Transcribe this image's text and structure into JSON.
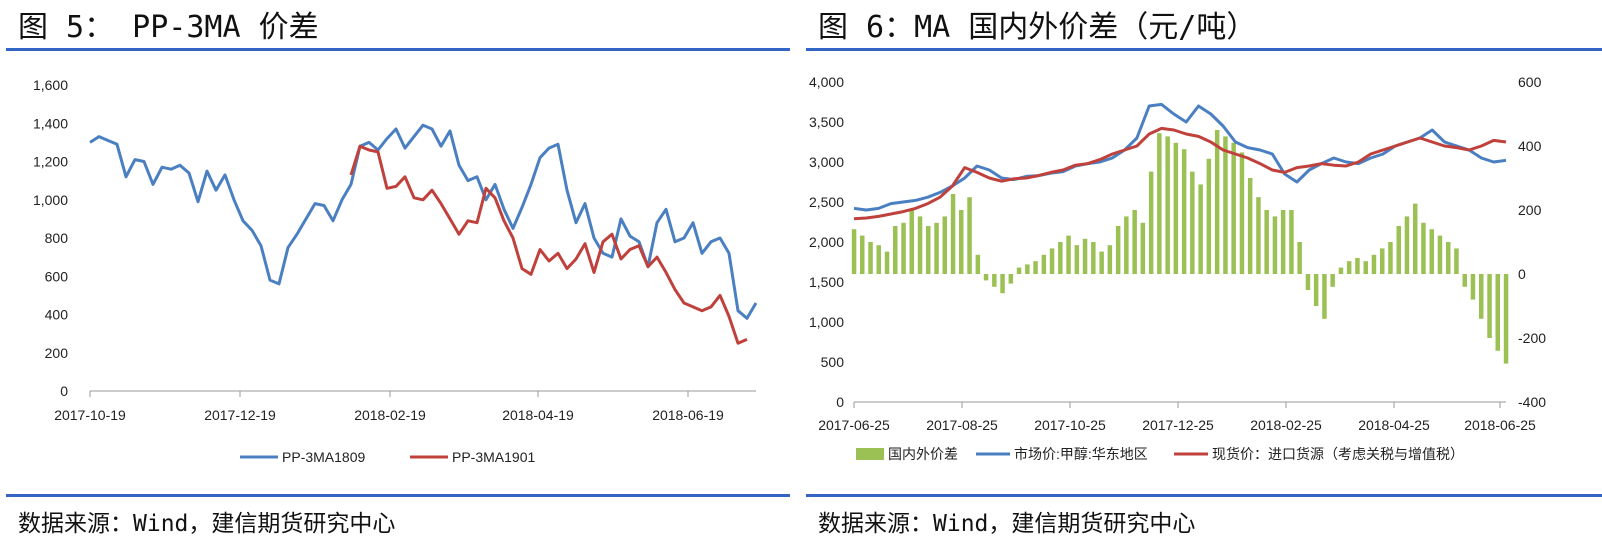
{
  "panels": {
    "left": {
      "title": "图 5： PP-3MA 价差",
      "source": "数据来源：Wind，建信期货研究中心"
    },
    "right": {
      "title": "图 6：MA 国内外价差（元/吨）",
      "source": "数据来源：Wind，建信期货研究中心"
    }
  },
  "colors": {
    "blue": "#4a7fc1",
    "red": "#c0413c",
    "green": "#9bc155",
    "rule": "#3565c4"
  },
  "chart_data": [
    {
      "type": "line",
      "title": "",
      "x_tick_labels": [
        "2017-10-19",
        "2017-12-19",
        "2018-02-19",
        "2018-04-19",
        "2018-06-19"
      ],
      "ylim": [
        0,
        1600
      ],
      "y_ticks": [
        0,
        200,
        400,
        600,
        800,
        1000,
        1200,
        1400,
        1600
      ],
      "y_tick_labels": [
        "0",
        "200",
        "400",
        "600",
        "800",
        "1,000",
        "1,200",
        "1,400",
        "1,600"
      ],
      "legend_position": "bottom",
      "series": [
        {
          "name": "PP-3MA1809",
          "color": "#4a7fc1",
          "values": [
            1300,
            1330,
            1310,
            1290,
            1120,
            1210,
            1200,
            1080,
            1170,
            1160,
            1180,
            1140,
            990,
            1150,
            1050,
            1130,
            1000,
            890,
            840,
            760,
            580,
            560,
            750,
            820,
            900,
            980,
            970,
            890,
            1000,
            1080,
            1280,
            1300,
            1260,
            1320,
            1370,
            1270,
            1330,
            1390,
            1370,
            1280,
            1360,
            1180,
            1100,
            1120,
            1000,
            1080,
            950,
            850,
            960,
            1080,
            1220,
            1270,
            1290,
            1050,
            880,
            980,
            800,
            720,
            700,
            900,
            810,
            780,
            650,
            880,
            950,
            780,
            800,
            880,
            720,
            780,
            800,
            720,
            420,
            380,
            460
          ]
        },
        {
          "name": "PP-3MA1901",
          "color": "#c0413c",
          "values": [
            1130,
            1280,
            1260,
            1250,
            1060,
            1070,
            1120,
            1010,
            1000,
            1050,
            980,
            900,
            820,
            890,
            880,
            1060,
            1010,
            890,
            800,
            640,
            610,
            740,
            680,
            720,
            640,
            690,
            770,
            620,
            780,
            820,
            690,
            740,
            760,
            650,
            700,
            620,
            530,
            460,
            440,
            420,
            440,
            500,
            390,
            250,
            270
          ]
        }
      ]
    },
    {
      "type": "bar+line",
      "title": "",
      "x_tick_labels": [
        "2017-06-25",
        "2017-08-25",
        "2017-10-25",
        "2017-12-25",
        "2018-02-25",
        "2018-04-25",
        "2018-06-25"
      ],
      "ylim": [
        0,
        4000
      ],
      "y_ticks_left": [
        0,
        500,
        1000,
        1500,
        2000,
        2500,
        3000,
        3500,
        4000
      ],
      "y_tick_labels_left": [
        "0",
        "500",
        "1,000",
        "1,500",
        "2,000",
        "2,500",
        "3,000",
        "3,500",
        "4,000"
      ],
      "y2lim": [
        -400,
        600
      ],
      "y_ticks_right": [
        -400,
        -200,
        0,
        200,
        400,
        600
      ],
      "y_tick_labels_right": [
        "-400",
        "-200",
        "0",
        "200",
        "400",
        "600"
      ],
      "legend_position": "bottom",
      "series": [
        {
          "name": "国内外价差",
          "kind": "bar",
          "axis": "right",
          "color": "#9bc155",
          "values": [
            140,
            120,
            100,
            90,
            70,
            150,
            160,
            200,
            180,
            150,
            160,
            180,
            250,
            200,
            240,
            60,
            -20,
            -40,
            -60,
            -30,
            20,
            30,
            40,
            60,
            80,
            100,
            120,
            90,
            110,
            100,
            70,
            90,
            150,
            180,
            200,
            160,
            320,
            440,
            430,
            410,
            390,
            320,
            280,
            360,
            450,
            430,
            410,
            380,
            300,
            240,
            200,
            180,
            200,
            200,
            100,
            -50,
            -100,
            -140,
            -40,
            20,
            40,
            50,
            40,
            60,
            80,
            100,
            150,
            180,
            220,
            160,
            140,
            120,
            100,
            80,
            -40,
            -80,
            -140,
            -200,
            -240,
            -280
          ]
        },
        {
          "name": "市场价:甲醇:华东地区",
          "kind": "line",
          "axis": "left",
          "color": "#4a7fc1",
          "values": [
            2420,
            2400,
            2420,
            2480,
            2500,
            2520,
            2560,
            2620,
            2700,
            2800,
            2950,
            2900,
            2800,
            2780,
            2820,
            2830,
            2860,
            2880,
            2950,
            2980,
            3000,
            3050,
            3150,
            3300,
            3700,
            3720,
            3600,
            3500,
            3700,
            3600,
            3450,
            3250,
            3180,
            3150,
            3100,
            2850,
            2750,
            2900,
            2980,
            3050,
            3000,
            2980,
            3050,
            3100,
            3200,
            3250,
            3300,
            3400,
            3250,
            3200,
            3150,
            3050,
            3000,
            3020
          ]
        },
        {
          "name": "现货价：进口货源（考虑关税与增值税）",
          "kind": "line",
          "axis": "left",
          "color": "#c0413c",
          "values": [
            2290,
            2300,
            2320,
            2350,
            2380,
            2420,
            2480,
            2560,
            2700,
            2930,
            2870,
            2800,
            2760,
            2790,
            2800,
            2830,
            2870,
            2900,
            2960,
            2980,
            3030,
            3100,
            3150,
            3200,
            3350,
            3420,
            3400,
            3350,
            3320,
            3250,
            3150,
            3100,
            3050,
            2980,
            2900,
            2870,
            2930,
            2950,
            2980,
            2960,
            2950,
            3000,
            3100,
            3150,
            3200,
            3250,
            3300,
            3250,
            3200,
            3180,
            3150,
            3200,
            3270,
            3250
          ]
        }
      ]
    }
  ]
}
